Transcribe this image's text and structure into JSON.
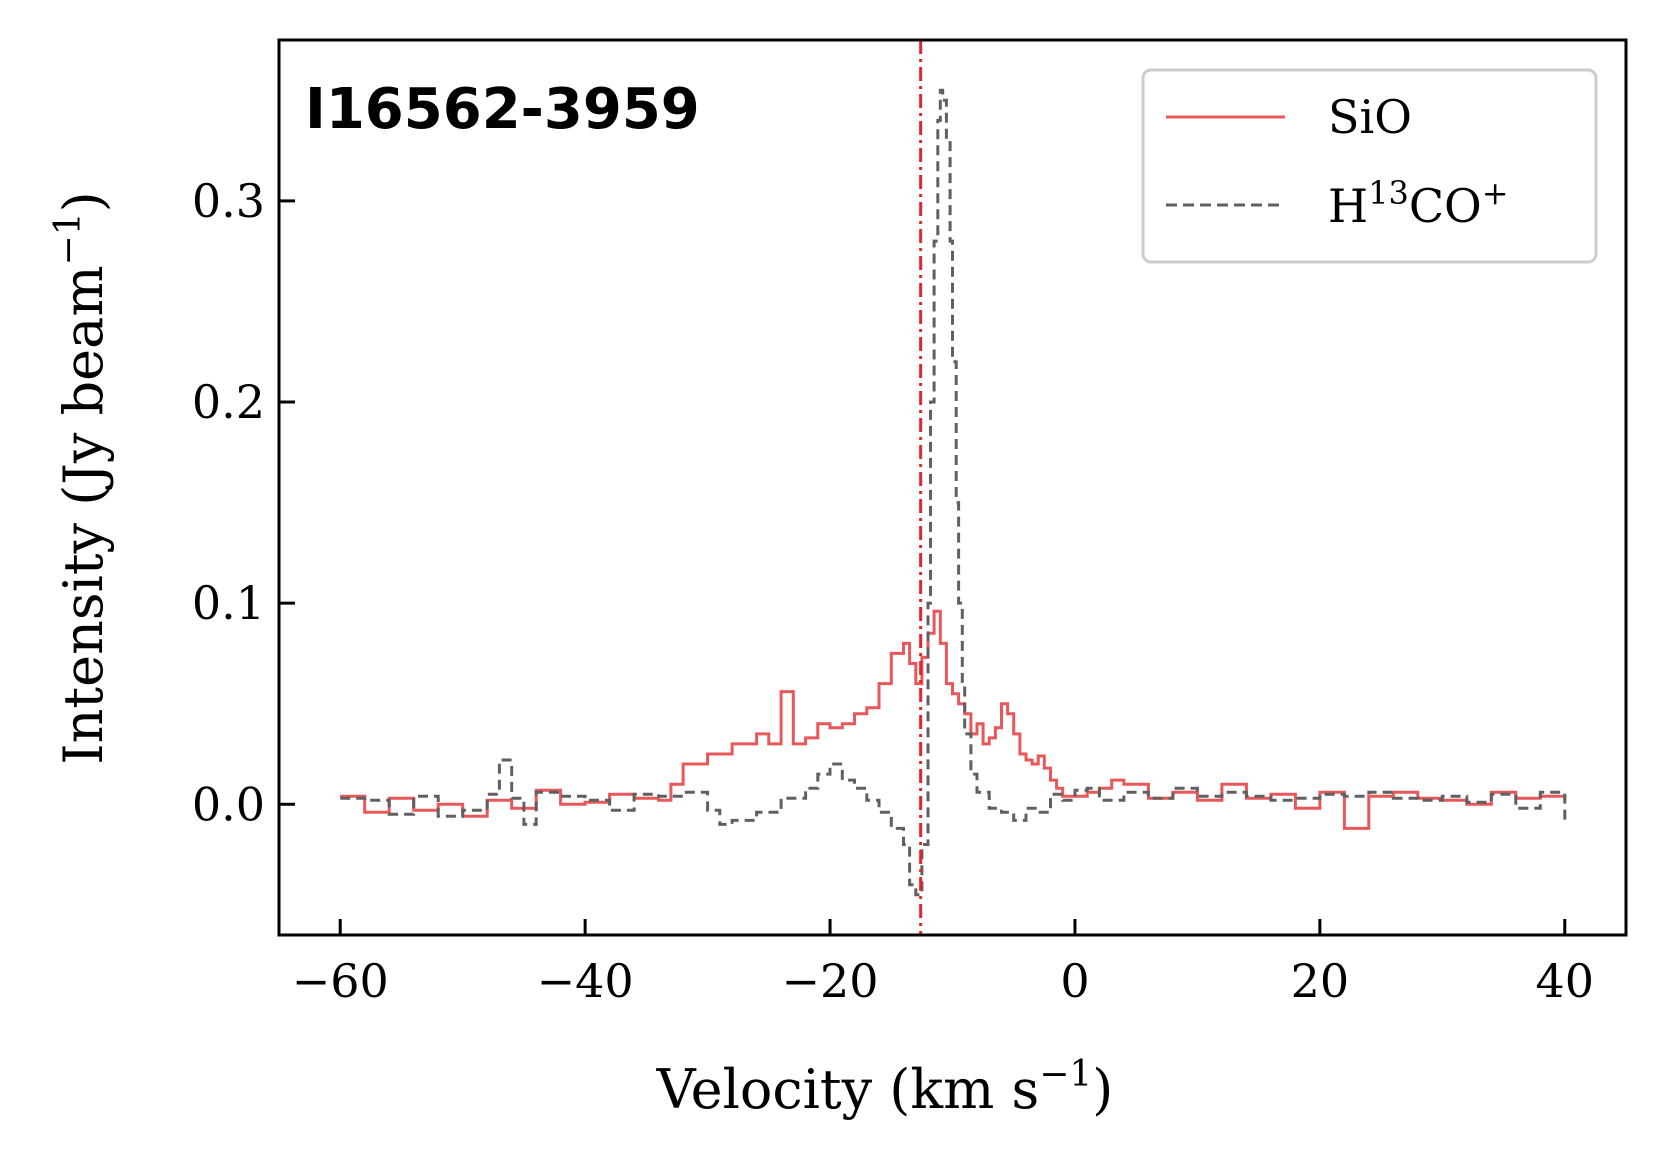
{
  "chart_data": {
    "type": "line",
    "title": "I16562-3959",
    "xlabel_main": "Velocity (km s",
    "xlabel_sup": "−1",
    "xlabel_close": ")",
    "ylabel_main": "Intensity (Jy beam",
    "ylabel_sup": "−1",
    "ylabel_close": ")",
    "xlim": [
      -65,
      45
    ],
    "ylim": [
      -0.065,
      0.38
    ],
    "x_ticks": [
      -60,
      -40,
      -20,
      0,
      20,
      40
    ],
    "x_tick_labels": [
      "−60",
      "−40",
      "−20",
      "0",
      "20",
      "40"
    ],
    "y_ticks": [
      0.0,
      0.1,
      0.2,
      0.3
    ],
    "y_tick_labels": [
      "0.0",
      "0.1",
      "0.2",
      "0.3"
    ],
    "grid": false,
    "legend_position": "top-right",
    "systemic_velocity": -12.6,
    "systemic_color": "#e8222a",
    "series": [
      {
        "name": "SiO",
        "legend_label": "SiO",
        "color": "#e8575a",
        "style": "solid",
        "x": [
          -60,
          -58,
          -56,
          -54,
          -52,
          -50,
          -48,
          -46,
          -44,
          -42,
          -40,
          -38,
          -36,
          -34,
          -33,
          -32,
          -30,
          -28,
          -26,
          -25,
          -24,
          -23,
          -22,
          -21,
          -20,
          -19,
          -18,
          -17,
          -16,
          -15,
          -14,
          -13.5,
          -13,
          -12.5,
          -12,
          -11.5,
          -11,
          -10.5,
          -10,
          -9.5,
          -9,
          -8.5,
          -8,
          -7.5,
          -7,
          -6.5,
          -6,
          -5.5,
          -5,
          -4.5,
          -4,
          -3.5,
          -3,
          -2.5,
          -2,
          -1.5,
          -1,
          0,
          1,
          2,
          3,
          4,
          6,
          8,
          10,
          12,
          14,
          16,
          18,
          20,
          22,
          24,
          26,
          28,
          30,
          32,
          34,
          36,
          38,
          40
        ],
        "y": [
          0.004,
          -0.004,
          0.003,
          -0.003,
          0.0,
          -0.006,
          0.002,
          -0.002,
          0.007,
          0.0,
          0.001,
          0.005,
          0.003,
          0.002,
          0.01,
          0.02,
          0.025,
          0.03,
          0.035,
          0.03,
          0.056,
          0.03,
          0.033,
          0.04,
          0.038,
          0.04,
          0.045,
          0.048,
          0.06,
          0.075,
          0.08,
          0.07,
          0.06,
          0.073,
          0.085,
          0.096,
          0.08,
          0.06,
          0.055,
          0.05,
          0.045,
          0.035,
          0.04,
          0.03,
          0.033,
          0.038,
          0.05,
          0.045,
          0.035,
          0.025,
          0.022,
          0.02,
          0.024,
          0.018,
          0.012,
          0.008,
          0.004,
          0.004,
          0.006,
          0.008,
          0.012,
          0.01,
          0.003,
          0.006,
          0.002,
          0.01,
          0.003,
          0.005,
          -0.002,
          0.006,
          -0.012,
          0.004,
          0.006,
          0.003,
          0.002,
          0.0,
          0.006,
          0.003,
          0.004,
          0.002
        ]
      },
      {
        "name": "H13CO+",
        "legend_label_main": "H",
        "legend_label_sup1": "13",
        "legend_label_mid": "CO",
        "legend_label_sup2": "+",
        "color": "#606060",
        "style": "dashed",
        "x": [
          -60,
          -58,
          -56,
          -54,
          -52,
          -50,
          -48,
          -47,
          -46,
          -45,
          -44,
          -42,
          -40,
          -38,
          -36,
          -34,
          -32,
          -30,
          -29,
          -28,
          -26,
          -24,
          -22,
          -21,
          -20,
          -19,
          -18,
          -17,
          -16,
          -15,
          -14,
          -13.5,
          -13,
          -12.5,
          -12,
          -11.8,
          -11.5,
          -11.2,
          -11,
          -10.8,
          -10.5,
          -10.2,
          -10,
          -9.7,
          -9.5,
          -9.2,
          -9,
          -8.5,
          -8,
          -7,
          -6,
          -5,
          -4,
          -3,
          -2,
          -1,
          0,
          1,
          2,
          4,
          6,
          8,
          10,
          12,
          14,
          16,
          18,
          20,
          22,
          24,
          26,
          28,
          30,
          32,
          34,
          36,
          38,
          40
        ],
        "y": [
          0.003,
          0.002,
          -0.005,
          0.004,
          -0.006,
          -0.003,
          0.005,
          0.022,
          0.003,
          -0.01,
          0.006,
          0.004,
          0.002,
          -0.003,
          0.005,
          0.004,
          0.006,
          -0.003,
          -0.01,
          -0.008,
          -0.004,
          0.003,
          0.008,
          0.015,
          0.02,
          0.012,
          0.008,
          0.002,
          -0.004,
          -0.012,
          -0.02,
          -0.04,
          -0.045,
          -0.02,
          0.1,
          0.2,
          0.28,
          0.34,
          0.355,
          0.35,
          0.33,
          0.28,
          0.22,
          0.15,
          0.1,
          0.06,
          0.035,
          0.015,
          0.006,
          -0.002,
          -0.004,
          -0.008,
          -0.002,
          -0.004,
          0.005,
          0.002,
          0.007,
          0.008,
          0.002,
          0.006,
          0.003,
          0.008,
          0.004,
          0.006,
          0.004,
          0.002,
          0.003,
          0.005,
          0.004,
          0.006,
          0.003,
          0.002,
          0.004,
          0.001,
          0.005,
          -0.002,
          0.006,
          -0.008
        ]
      }
    ]
  }
}
